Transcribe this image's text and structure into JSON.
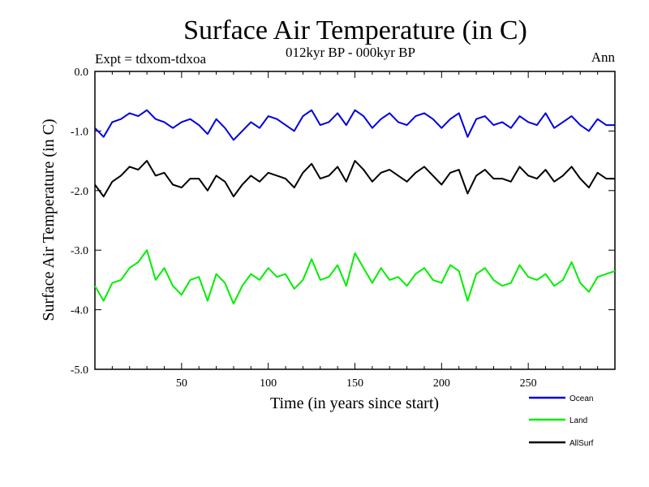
{
  "chart_data": {
    "type": "line",
    "title": "Surface Air Temperature (in C)",
    "subtitle": "012kyr BP - 000kyr BP",
    "experiment_label": "Expt = tdxom-tdxoa",
    "period_label": "Ann",
    "xlabel": "Time (in years since start)",
    "ylabel": "Surface Air Temperature (in C)",
    "xlim": [
      0,
      300
    ],
    "ylim": [
      -5.0,
      0.0
    ],
    "xticks": [
      50,
      100,
      150,
      200,
      250
    ],
    "yticks": [
      0.0,
      -1.0,
      -2.0,
      -3.0,
      -4.0,
      -5.0
    ],
    "ytick_labels": [
      "0.0",
      "-1.0",
      "-2.0",
      "-3.0",
      "-4.0",
      "-5.0"
    ],
    "grid": false,
    "legend_position": "bottom-right",
    "series": [
      {
        "name": "Ocean",
        "color": "#0000dd",
        "x": [
          0,
          5,
          10,
          15,
          20,
          25,
          30,
          35,
          40,
          45,
          50,
          55,
          60,
          65,
          70,
          75,
          80,
          85,
          90,
          95,
          100,
          105,
          110,
          115,
          120,
          125,
          130,
          135,
          140,
          145,
          150,
          155,
          160,
          165,
          170,
          175,
          180,
          185,
          190,
          195,
          200,
          205,
          210,
          215,
          220,
          225,
          230,
          235,
          240,
          245,
          250,
          255,
          260,
          265,
          270,
          275,
          280,
          285,
          290,
          295,
          300
        ],
        "values": [
          -0.95,
          -1.1,
          -0.85,
          -0.8,
          -0.7,
          -0.75,
          -0.65,
          -0.8,
          -0.85,
          -0.95,
          -0.85,
          -0.8,
          -0.9,
          -1.05,
          -0.8,
          -0.95,
          -1.15,
          -1.0,
          -0.85,
          -0.95,
          -0.75,
          -0.8,
          -0.9,
          -1.0,
          -0.75,
          -0.65,
          -0.9,
          -0.85,
          -0.7,
          -0.9,
          -0.65,
          -0.75,
          -0.95,
          -0.8,
          -0.7,
          -0.85,
          -0.9,
          -0.75,
          -0.7,
          -0.8,
          -0.95,
          -0.8,
          -0.7,
          -1.1,
          -0.8,
          -0.75,
          -0.9,
          -0.85,
          -0.95,
          -0.75,
          -0.85,
          -0.9,
          -0.7,
          -0.95,
          -0.85,
          -0.75,
          -0.9,
          -1.0,
          -0.8,
          -0.9,
          -0.9
        ]
      },
      {
        "name": "Land",
        "color": "#00ee00",
        "x": [
          0,
          5,
          10,
          15,
          20,
          25,
          30,
          35,
          40,
          45,
          50,
          55,
          60,
          65,
          70,
          75,
          80,
          85,
          90,
          95,
          100,
          105,
          110,
          115,
          120,
          125,
          130,
          135,
          140,
          145,
          150,
          155,
          160,
          165,
          170,
          175,
          180,
          185,
          190,
          195,
          200,
          205,
          210,
          215,
          220,
          225,
          230,
          235,
          240,
          245,
          250,
          255,
          260,
          265,
          270,
          275,
          280,
          285,
          290,
          295,
          300
        ],
        "values": [
          -3.6,
          -3.85,
          -3.55,
          -3.5,
          -3.3,
          -3.2,
          -3.0,
          -3.5,
          -3.3,
          -3.6,
          -3.75,
          -3.5,
          -3.45,
          -3.85,
          -3.4,
          -3.55,
          -3.9,
          -3.6,
          -3.4,
          -3.5,
          -3.3,
          -3.45,
          -3.4,
          -3.65,
          -3.5,
          -3.15,
          -3.5,
          -3.45,
          -3.25,
          -3.6,
          -3.05,
          -3.3,
          -3.55,
          -3.3,
          -3.5,
          -3.45,
          -3.6,
          -3.4,
          -3.3,
          -3.5,
          -3.55,
          -3.25,
          -3.35,
          -3.85,
          -3.4,
          -3.3,
          -3.5,
          -3.6,
          -3.55,
          -3.25,
          -3.45,
          -3.5,
          -3.4,
          -3.6,
          -3.5,
          -3.2,
          -3.55,
          -3.7,
          -3.45,
          -3.4,
          -3.35
        ]
      },
      {
        "name": "AllSurf",
        "color": "#000000",
        "x": [
          0,
          5,
          10,
          15,
          20,
          25,
          30,
          35,
          40,
          45,
          50,
          55,
          60,
          65,
          70,
          75,
          80,
          85,
          90,
          95,
          100,
          105,
          110,
          115,
          120,
          125,
          130,
          135,
          140,
          145,
          150,
          155,
          160,
          165,
          170,
          175,
          180,
          185,
          190,
          195,
          200,
          205,
          210,
          215,
          220,
          225,
          230,
          235,
          240,
          245,
          250,
          255,
          260,
          265,
          270,
          275,
          280,
          285,
          290,
          295,
          300
        ],
        "values": [
          -1.9,
          -2.1,
          -1.85,
          -1.75,
          -1.6,
          -1.65,
          -1.5,
          -1.75,
          -1.7,
          -1.9,
          -1.95,
          -1.8,
          -1.8,
          -2.0,
          -1.75,
          -1.85,
          -2.1,
          -1.9,
          -1.75,
          -1.85,
          -1.7,
          -1.75,
          -1.8,
          -1.95,
          -1.7,
          -1.55,
          -1.8,
          -1.75,
          -1.6,
          -1.85,
          -1.5,
          -1.65,
          -1.85,
          -1.7,
          -1.65,
          -1.75,
          -1.85,
          -1.7,
          -1.6,
          -1.75,
          -1.9,
          -1.7,
          -1.65,
          -2.05,
          -1.75,
          -1.65,
          -1.8,
          -1.8,
          -1.85,
          -1.6,
          -1.75,
          -1.8,
          -1.65,
          -1.85,
          -1.75,
          -1.6,
          -1.8,
          -1.95,
          -1.7,
          -1.8,
          -1.8
        ]
      }
    ]
  }
}
